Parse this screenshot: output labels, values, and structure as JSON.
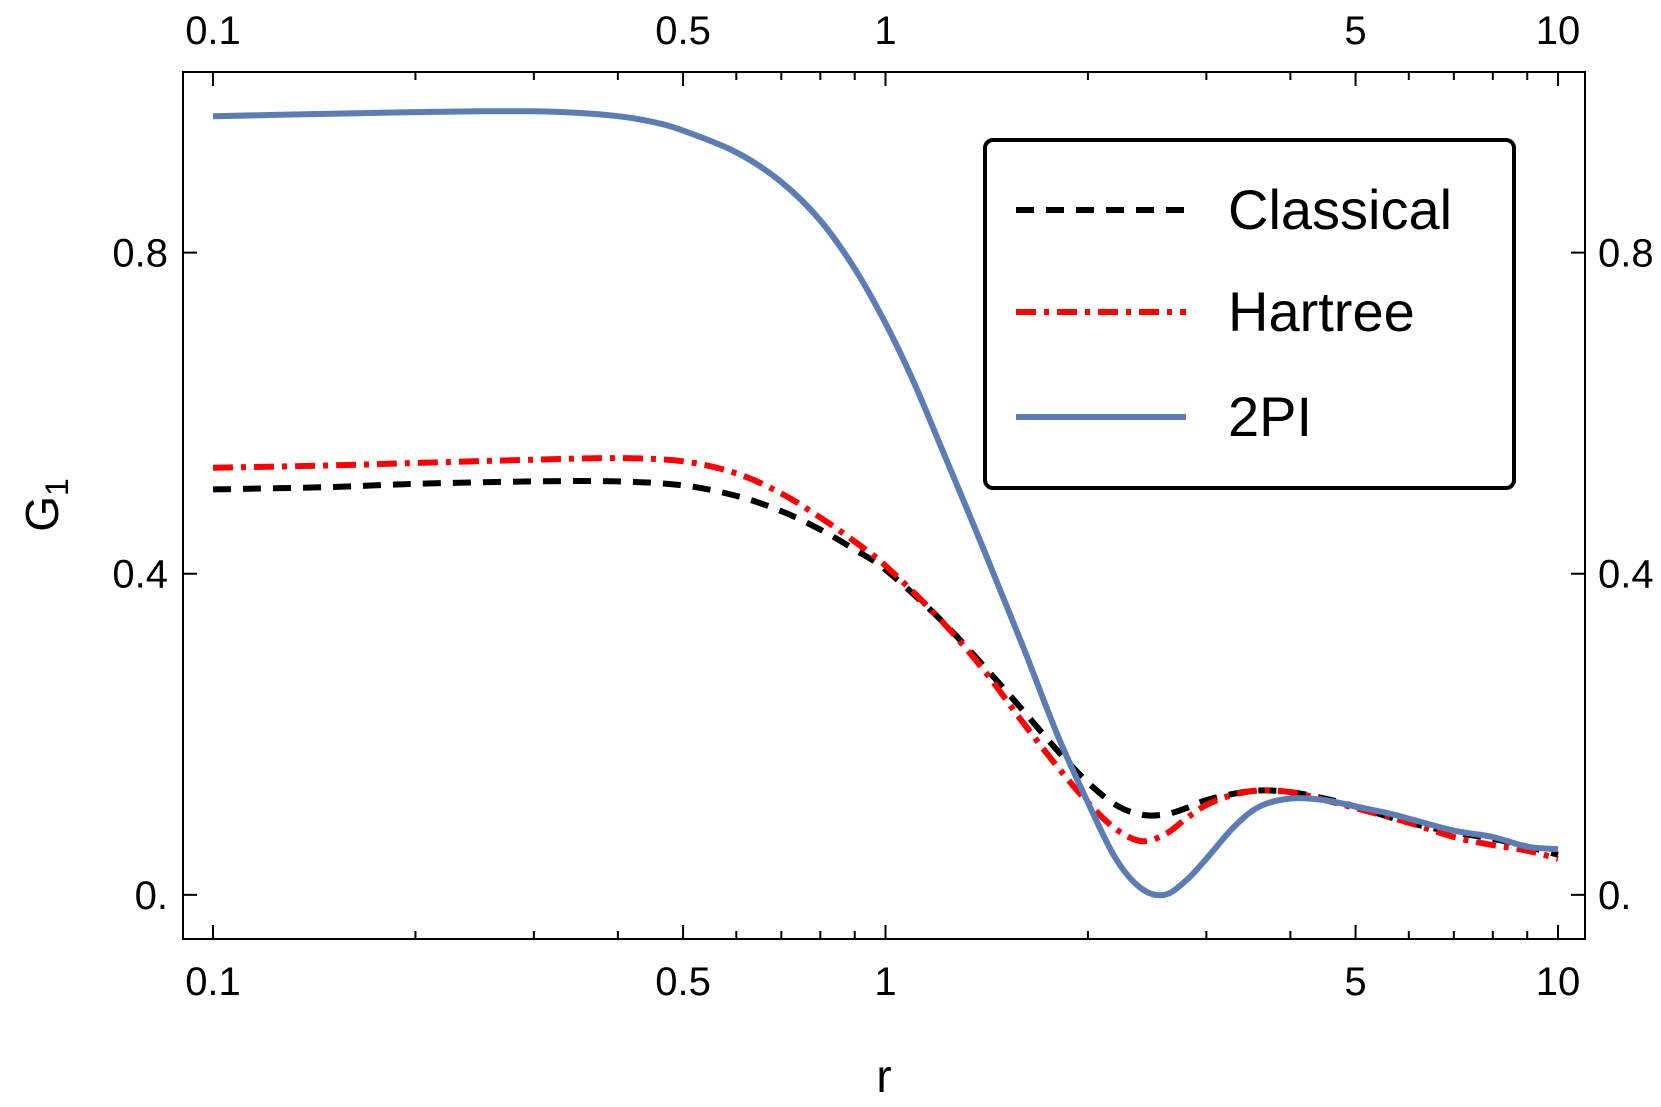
{
  "chart_data": {
    "type": "line",
    "title": "",
    "xlabel": "r",
    "ylabel": {
      "base": "G",
      "sub": "1"
    },
    "x_scale": "log",
    "xlim": [
      0.1,
      10
    ],
    "ylim": [
      -0.055,
      1.025
    ],
    "x_ticks": [
      0.1,
      0.5,
      1,
      5,
      10
    ],
    "x_tick_labels": [
      "0.1",
      "0.5",
      "1",
      "5",
      "10"
    ],
    "y_ticks": [
      0,
      0.4,
      0.8
    ],
    "y_tick_labels": [
      "0.",
      "0.4",
      "0.8"
    ],
    "grid": false,
    "legend_position": "top-right",
    "series": [
      {
        "name": "Classical",
        "color": "#000000",
        "style": "dashed",
        "points": [
          [
            0.1,
            0.505
          ],
          [
            0.15,
            0.508
          ],
          [
            0.2,
            0.512
          ],
          [
            0.3,
            0.515
          ],
          [
            0.4,
            0.515
          ],
          [
            0.5,
            0.51
          ],
          [
            0.6,
            0.497
          ],
          [
            0.7,
            0.478
          ],
          [
            0.8,
            0.455
          ],
          [
            0.9,
            0.43
          ],
          [
            1.0,
            0.405
          ],
          [
            1.2,
            0.345
          ],
          [
            1.4,
            0.285
          ],
          [
            1.6,
            0.23
          ],
          [
            1.8,
            0.18
          ],
          [
            2.0,
            0.14
          ],
          [
            2.2,
            0.112
          ],
          [
            2.4,
            0.1
          ],
          [
            2.6,
            0.1
          ],
          [
            2.8,
            0.108
          ],
          [
            3.0,
            0.118
          ],
          [
            3.3,
            0.126
          ],
          [
            3.6,
            0.13
          ],
          [
            4.0,
            0.128
          ],
          [
            4.5,
            0.12
          ],
          [
            5.0,
            0.11
          ],
          [
            6.0,
            0.09
          ],
          [
            7.0,
            0.078
          ],
          [
            8.0,
            0.07
          ],
          [
            9.0,
            0.06
          ],
          [
            10.0,
            0.05
          ]
        ]
      },
      {
        "name": "Hartree",
        "color": "#ff0000",
        "style": "dashdot",
        "points": [
          [
            0.1,
            0.532
          ],
          [
            0.15,
            0.535
          ],
          [
            0.2,
            0.538
          ],
          [
            0.3,
            0.542
          ],
          [
            0.4,
            0.544
          ],
          [
            0.5,
            0.54
          ],
          [
            0.6,
            0.525
          ],
          [
            0.7,
            0.5
          ],
          [
            0.8,
            0.47
          ],
          [
            0.9,
            0.44
          ],
          [
            1.0,
            0.41
          ],
          [
            1.2,
            0.345
          ],
          [
            1.4,
            0.28
          ],
          [
            1.6,
            0.215
          ],
          [
            1.8,
            0.16
          ],
          [
            2.0,
            0.115
          ],
          [
            2.2,
            0.082
          ],
          [
            2.4,
            0.067
          ],
          [
            2.6,
            0.075
          ],
          [
            2.8,
            0.095
          ],
          [
            3.0,
            0.112
          ],
          [
            3.3,
            0.125
          ],
          [
            3.6,
            0.13
          ],
          [
            4.0,
            0.128
          ],
          [
            4.5,
            0.118
          ],
          [
            5.0,
            0.108
          ],
          [
            6.0,
            0.09
          ],
          [
            7.0,
            0.072
          ],
          [
            8.0,
            0.062
          ],
          [
            9.0,
            0.055
          ],
          [
            10.0,
            0.045
          ]
        ]
      },
      {
        "name": "2PI",
        "color": "#5b7db4",
        "style": "solid",
        "points": [
          [
            0.1,
            0.97
          ],
          [
            0.15,
            0.973
          ],
          [
            0.2,
            0.975
          ],
          [
            0.25,
            0.976
          ],
          [
            0.3,
            0.976
          ],
          [
            0.35,
            0.974
          ],
          [
            0.4,
            0.97
          ],
          [
            0.45,
            0.963
          ],
          [
            0.5,
            0.952
          ],
          [
            0.6,
            0.925
          ],
          [
            0.7,
            0.888
          ],
          [
            0.8,
            0.84
          ],
          [
            0.9,
            0.78
          ],
          [
            1.0,
            0.712
          ],
          [
            1.1,
            0.64
          ],
          [
            1.2,
            0.565
          ],
          [
            1.4,
            0.43
          ],
          [
            1.6,
            0.31
          ],
          [
            1.8,
            0.2
          ],
          [
            2.0,
            0.115
          ],
          [
            2.2,
            0.045
          ],
          [
            2.4,
            0.008
          ],
          [
            2.6,
            0.0
          ],
          [
            2.8,
            0.018
          ],
          [
            3.0,
            0.045
          ],
          [
            3.3,
            0.085
          ],
          [
            3.6,
            0.11
          ],
          [
            4.0,
            0.12
          ],
          [
            4.5,
            0.118
          ],
          [
            5.0,
            0.11
          ],
          [
            5.5,
            0.103
          ],
          [
            6.0,
            0.095
          ],
          [
            7.0,
            0.08
          ],
          [
            8.0,
            0.072
          ],
          [
            9.0,
            0.06
          ],
          [
            10.0,
            0.057
          ]
        ]
      }
    ]
  }
}
